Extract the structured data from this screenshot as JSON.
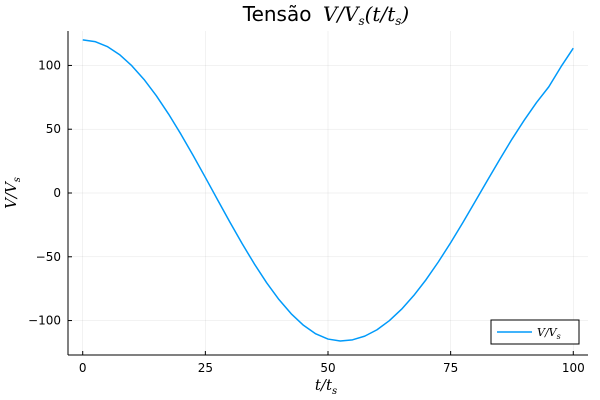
{
  "chart_data": {
    "type": "line",
    "title": "Tensão V/V_s(t/t_s)",
    "title_prefix": "Tensão",
    "title_math": "V/V",
    "title_sub": "s",
    "title_suffix": "(t/t",
    "title_sub2": "s",
    "title_end": ")",
    "xlabel": "t/t_s",
    "xlabel_main": "t/t",
    "xlabel_sub": "s",
    "ylabel": "V/V_s",
    "ylabel_main": "V/V",
    "ylabel_sub": "s",
    "xlim": [
      -3,
      103
    ],
    "ylim": [
      -127,
      127
    ],
    "xticks": [
      0,
      25,
      50,
      75,
      100
    ],
    "yticks": [
      -100,
      -50,
      0,
      50,
      100
    ],
    "xtick_labels": [
      "0",
      "25",
      "50",
      "75",
      "100"
    ],
    "ytick_labels": [
      "−100",
      "−50",
      "0",
      "50",
      "100"
    ],
    "grid": true,
    "legend_position": "bottom-right",
    "line_color": "#009AFA",
    "series": [
      {
        "name": "V/V_s",
        "legend_main": "V/V",
        "legend_sub": "s",
        "x": [
          0,
          2.5,
          5,
          7.5,
          10,
          12.5,
          15,
          17.5,
          20,
          22.5,
          25,
          27.5,
          30,
          32.5,
          35,
          37.5,
          40,
          42.5,
          45,
          47.5,
          50,
          52.5,
          55,
          57.5,
          60,
          62.5,
          65,
          67.5,
          70,
          72.5,
          75,
          77.5,
          80,
          82.5,
          85,
          87.5,
          90,
          92.5,
          95,
          97.5,
          100
        ],
        "y": [
          120,
          118.7,
          114.8,
          108.5,
          99.8,
          89.0,
          76.3,
          61.9,
          46.2,
          29.5,
          12.2,
          -5.4,
          -22.8,
          -39.7,
          -55.7,
          -70.4,
          -83.5,
          -94.7,
          -103.7,
          -110.4,
          -114.5,
          -116.0,
          -115.1,
          -112.2,
          -107.2,
          -100.1,
          -91.1,
          -80.3,
          -67.9,
          -54.0,
          -39.0,
          -23.1,
          -6.7,
          9.9,
          26.3,
          42.2,
          57.1,
          70.9,
          83.2,
          99.0,
          113.5
        ]
      }
    ]
  }
}
